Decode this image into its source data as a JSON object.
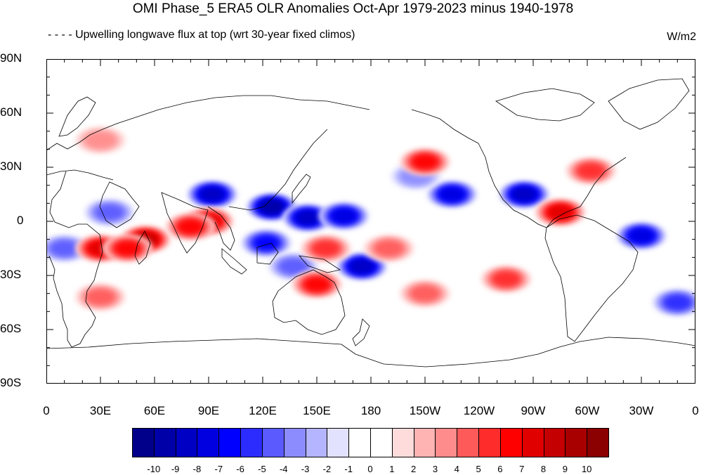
{
  "title": "OMI Phase_5 ERA5 OLR Anomalies Oct-Apr 1979-2023 minus 1940-1978",
  "subtitle_left": "- - - - Upwelling longwave flux at top  (wrt 30-year fixed climos)",
  "units": "W/m2",
  "lat_ticks": [
    "90N",
    "60N",
    "30N",
    "0",
    "30S",
    "60S",
    "90S"
  ],
  "lon_ticks": [
    "0",
    "30E",
    "60E",
    "90E",
    "120E",
    "150E",
    "180",
    "150W",
    "120W",
    "90W",
    "60W",
    "30W",
    "0"
  ],
  "colorbar": {
    "labels": [
      "-10",
      "-9",
      "-8",
      "-7",
      "-6",
      "-5",
      "-4",
      "-3",
      "-2",
      "-1",
      "0",
      "1",
      "2",
      "3",
      "4",
      "5",
      "6",
      "7",
      "8",
      "9",
      "10"
    ],
    "colors": [
      "#00008b",
      "#0000a8",
      "#0000c4",
      "#0000e0",
      "#0000ff",
      "#2c2cff",
      "#5a5aff",
      "#8c8cff",
      "#b4b4ff",
      "#e2e2ff",
      "#ffffff",
      "#ffffff",
      "#ffdcdc",
      "#ffb4b4",
      "#ff8c8c",
      "#ff5a5a",
      "#ff2c2c",
      "#ff0000",
      "#e00000",
      "#c40000",
      "#a80000",
      "#8b0000"
    ]
  },
  "anomaly_blobs": [
    {
      "lon": 92,
      "lat": 15,
      "value": -8
    },
    {
      "lon": 125,
      "lat": 8,
      "value": -9
    },
    {
      "lon": 145,
      "lat": 2,
      "value": -8
    },
    {
      "lon": 165,
      "lat": 3,
      "value": -7
    },
    {
      "lon": 122,
      "lat": -12,
      "value": -6
    },
    {
      "lon": 137,
      "lat": -25,
      "value": -4
    },
    {
      "lon": 175,
      "lat": -25,
      "value": -8
    },
    {
      "lon": -135,
      "lat": 15,
      "value": -7
    },
    {
      "lon": -95,
      "lat": 15,
      "value": -8
    },
    {
      "lon": -30,
      "lat": -8,
      "value": -7
    },
    {
      "lon": 35,
      "lat": 5,
      "value": -4
    },
    {
      "lon": 10,
      "lat": -15,
      "value": -4
    },
    {
      "lon": -155,
      "lat": 25,
      "value": -3
    },
    {
      "lon": -10,
      "lat": -45,
      "value": -5
    },
    {
      "lon": 90,
      "lat": 0,
      "value": 7
    },
    {
      "lon": 80,
      "lat": -3,
      "value": 6
    },
    {
      "lon": 55,
      "lat": -10,
      "value": 8
    },
    {
      "lon": 30,
      "lat": -15,
      "value": 7
    },
    {
      "lon": 45,
      "lat": -15,
      "value": 6
    },
    {
      "lon": 155,
      "lat": -15,
      "value": 5
    },
    {
      "lon": 150,
      "lat": -35,
      "value": 6
    },
    {
      "lon": -150,
      "lat": 33,
      "value": 6
    },
    {
      "lon": -75,
      "lat": 5,
      "value": 7
    },
    {
      "lon": -58,
      "lat": 28,
      "value": 5
    },
    {
      "lon": -170,
      "lat": -15,
      "value": 4
    },
    {
      "lon": -105,
      "lat": -32,
      "value": 5
    },
    {
      "lon": 30,
      "lat": -42,
      "value": 4
    },
    {
      "lon": 30,
      "lat": 45,
      "value": 3
    },
    {
      "lon": -150,
      "lat": -40,
      "value": 4
    }
  ]
}
